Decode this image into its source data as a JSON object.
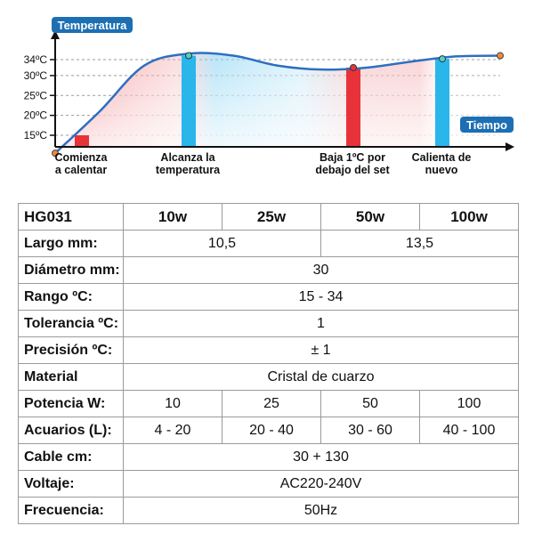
{
  "chart_data": {
    "type": "line",
    "ylabel": "Temperatura",
    "xlabel": "Tiempo",
    "y_ticks": [
      "34ºC",
      "30ºC",
      "25ºC",
      "20ºC",
      "15ºC"
    ],
    "y_tick_values": [
      34,
      30,
      25,
      20,
      15
    ],
    "grid": true,
    "series": [
      {
        "x": [
          0,
          10,
          20,
          30,
          40,
          50,
          60,
          70,
          80,
          90,
          100
        ],
        "y": [
          10.5,
          21,
          32.5,
          35.5,
          35,
          32.5,
          31.5,
          32,
          33.5,
          34.8,
          35
        ]
      }
    ],
    "annotations": [
      {
        "label_lines": [
          "Comienza",
          "a calentar"
        ],
        "x": 6,
        "value": 15,
        "bar_color": "#e8323a"
      },
      {
        "label_lines": [
          "Alcanza la",
          "temperatura"
        ],
        "x": 30,
        "value": 35,
        "bar_color": "#2ab6ea"
      },
      {
        "label_lines": [
          "Baja 1ºC por",
          "debajo del set"
        ],
        "x": 67,
        "value": 32,
        "bar_color": "#e8323a"
      },
      {
        "label_lines": [
          "Calienta de",
          "nuevo"
        ],
        "x": 87,
        "value": 34.2,
        "bar_color": "#2ab6ea"
      }
    ],
    "colors": {
      "axis_badge": "#1d6fb3",
      "line": "#2d6fc0",
      "hot": "#e8323a",
      "cool": "#2ab6ea"
    }
  },
  "table": {
    "header": [
      "HG031",
      "10w",
      "25w",
      "50w",
      "100w"
    ],
    "rows": [
      {
        "label": "Largo mm:",
        "cells": [
          {
            "text": "10,5",
            "span": 2
          },
          {
            "text": "13,5",
            "span": 2
          }
        ]
      },
      {
        "label": "Diámetro mm:",
        "cells": [
          {
            "text": "30",
            "span": 4
          }
        ]
      },
      {
        "label": "Rango ºC:",
        "cells": [
          {
            "text": "15 - 34",
            "span": 4
          }
        ]
      },
      {
        "label": "Tolerancia ºC:",
        "cells": [
          {
            "text": "1",
            "span": 4
          }
        ]
      },
      {
        "label": "Precisión ºC:",
        "cells": [
          {
            "text": "± 1",
            "span": 4
          }
        ]
      },
      {
        "label": "Material",
        "cells": [
          {
            "text": "Cristal de cuarzo",
            "span": 4
          }
        ]
      },
      {
        "label": "Potencia W:",
        "cells": [
          {
            "text": "10",
            "span": 1
          },
          {
            "text": "25",
            "span": 1
          },
          {
            "text": "50",
            "span": 1
          },
          {
            "text": "100",
            "span": 1
          }
        ]
      },
      {
        "label": "Acuarios (L):",
        "cells": [
          {
            "text": "4 - 20",
            "span": 1
          },
          {
            "text": "20 - 40",
            "span": 1
          },
          {
            "text": "30 - 60",
            "span": 1
          },
          {
            "text": "40 - 100",
            "span": 1
          }
        ]
      },
      {
        "label": "Cable cm:",
        "cells": [
          {
            "text": "30 + 130",
            "span": 4
          }
        ]
      },
      {
        "label": "Voltaje:",
        "cells": [
          {
            "text": "AC220-240V",
            "span": 4
          }
        ]
      },
      {
        "label": "Frecuencia:",
        "cells": [
          {
            "text": "50Hz",
            "span": 4
          }
        ]
      }
    ]
  }
}
